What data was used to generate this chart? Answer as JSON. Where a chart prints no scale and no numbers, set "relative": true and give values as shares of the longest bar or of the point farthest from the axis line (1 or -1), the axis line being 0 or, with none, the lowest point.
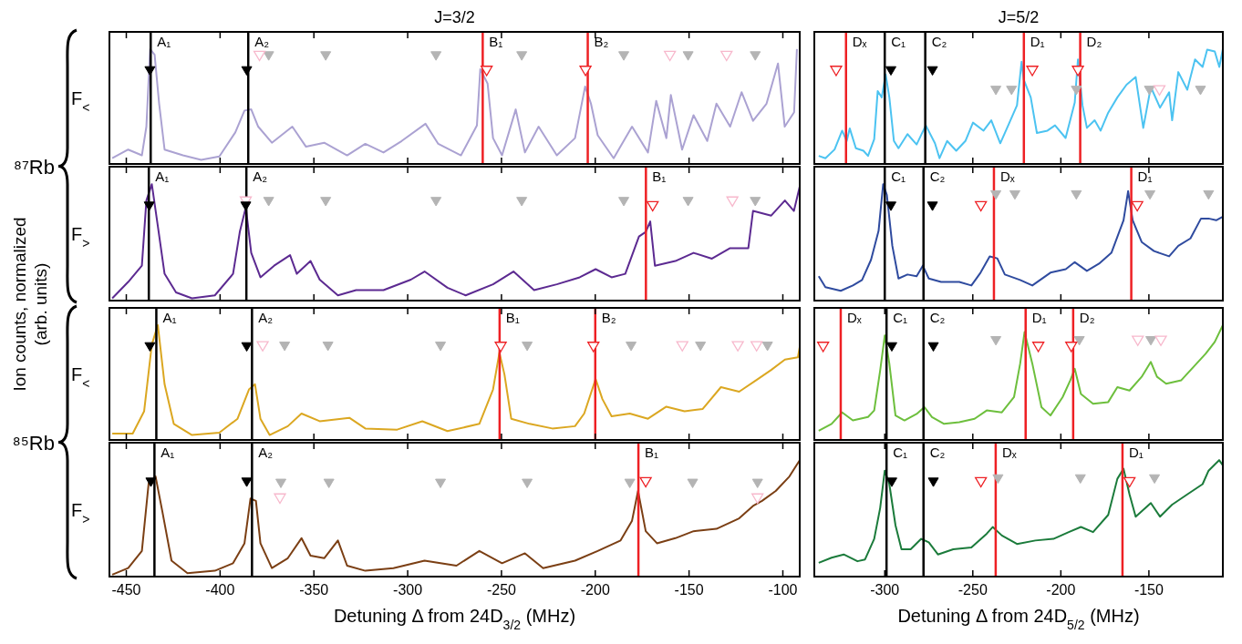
{
  "chart_data": [
    {
      "type": "line",
      "title": "J=3/2",
      "ylabel": "F$_{<}$",
      "relative": true,
      "xlim": [
        -459,
        -91
      ],
      "xticks": [
        -450,
        -400,
        -350,
        -300,
        -250,
        -200,
        -150,
        -100
      ],
      "tick_labels": false,
      "annotations": [
        "Ion counts, normalized (arb. units)",
        "⁸⁷Rb"
      ],
      "series": [
        {
          "type": "line",
          "color": "#aba2d2",
          "x": [
            -457.5,
            -449,
            -441.7,
            -439.3,
            -437.3,
            -434.9,
            -432.5,
            -429.6,
            -419.8,
            -410.1,
            -400.4,
            -391.9,
            -387,
            -383.4,
            -379.7,
            -372.4,
            -361.5,
            -354.2,
            -344.5,
            -332.3,
            -322.6,
            -312.9,
            -303.2,
            -290.5,
            -283.7,
            -271.6,
            -263.1,
            -261.3,
            -257.4,
            -254.5,
            -249.7,
            -242.4,
            -237.5,
            -230.2,
            -220.5,
            -210.8,
            -205.4,
            -202.3,
            -198.7,
            -190.2,
            -180.4,
            -171.9,
            -167.5,
            -162.1,
            -159.7,
            -153.7,
            -147.6,
            -140.3,
            -135.4,
            -128.1,
            -122,
            -115.9,
            -108.7,
            -102.6,
            -99,
            -94,
            -92.5
          ],
          "values": [
            0.05,
            0.125,
            0.075,
            0.325,
            1,
            0.95,
            0.525,
            0.125,
            0.075,
            0.035,
            0.065,
            0.275,
            0.465,
            0.475,
            0.325,
            0.185,
            0.325,
            0.15,
            0.185,
            0.075,
            0.175,
            0.1,
            0.2,
            0.35,
            0.175,
            0.075,
            0.335,
            0.825,
            0.7,
            0.225,
            0.075,
            0.475,
            0.1,
            0.325,
            0.075,
            0.225,
            0.675,
            0.525,
            0.25,
            0.05,
            0.325,
            0.1,
            0.55,
            0.225,
            0.6,
            0.125,
            0.425,
            0.2,
            0.525,
            0.325,
            0.625,
            0.375,
            0.525,
            0.875,
            0.325,
            0.45,
            1
          ]
        },
        {
          "type": "scatter",
          "color": "#b4b4b4",
          "marker": "triangle",
          "x": [
            -374.1,
            -343.7,
            -284.9,
            -239.2,
            -184.8,
            -150.5,
            -114.7
          ],
          "values": [
            0.94,
            0.94,
            0.94,
            0.94,
            0.94,
            0.94,
            0.94
          ]
        },
        {
          "type": "scatter",
          "color": "#f7b8cc",
          "marker": "triangle",
          "x": [
            -379,
            -160.2,
            -130
          ],
          "values": [
            0.94,
            0.94,
            0.94
          ]
        },
        {
          "type": "scatter",
          "color": "#000000",
          "marker": "triangle",
          "x": [
            -437.4,
            -385.8
          ],
          "values": [
            0.81,
            0.81
          ]
        },
        {
          "type": "scatter",
          "color": "#ee2024",
          "marker": "triangle",
          "x": [
            -257.9,
            -205.2
          ],
          "values": [
            0.81,
            0.81
          ]
        }
      ],
      "ref_lines": [
        {
          "axis": "x",
          "value": -437,
          "label": "A₁",
          "color": "#000000"
        },
        {
          "axis": "x",
          "value": -385,
          "label": "A₂",
          "color": "#000000"
        },
        {
          "axis": "x",
          "value": -260,
          "label": "B₁",
          "color": "#ee2024"
        },
        {
          "axis": "x",
          "value": -204,
          "label": "B₂",
          "color": "#ee2024"
        }
      ]
    },
    {
      "type": "line",
      "title": "J=5/2",
      "relative": true,
      "xlim": [
        -340,
        -108
      ],
      "xticks": [
        -300,
        -250,
        -200,
        -150
      ],
      "tick_labels": false,
      "series": [
        {
          "type": "line",
          "color": "#4cc3f1",
          "x": [
            -337.5,
            -333.7,
            -328.5,
            -324.2,
            -321.6,
            -319.9,
            -316.4,
            -312.1,
            -309.5,
            -306,
            -304,
            -301.7,
            -299.5,
            -297.4,
            -294.8,
            -292.2,
            -287.1,
            -281.9,
            -276.7,
            -271.5,
            -268.9,
            -264.6,
            -259.4,
            -254.2,
            -249.9,
            -243.9,
            -239.5,
            -234.4,
            -229.2,
            -224.9,
            -222.3,
            -221.1,
            -217.1,
            -213.6,
            -207.6,
            -203.3,
            -197.3,
            -192.1,
            -190.3,
            -187.7,
            -185.2,
            -180.8,
            -177.4,
            -173.1,
            -167.9,
            -162.7,
            -157.5,
            -153.2,
            -148.9,
            -143.7,
            -138.5,
            -136.8,
            -133.3,
            -128.2,
            -123.8,
            -119.5,
            -116.9,
            -112.6,
            -110,
            -108
          ],
          "values": [
            0.07,
            0.05,
            0.126,
            0.29,
            0.2,
            0.31,
            0.137,
            0.115,
            0.07,
            0.215,
            0.635,
            0.58,
            0.78,
            0.58,
            0.2,
            0.137,
            0.26,
            0.17,
            0.336,
            0.18,
            0.05,
            0.2,
            0.115,
            0.2,
            0.36,
            0.29,
            0.38,
            0.18,
            0.36,
            0.51,
            0.89,
            0.735,
            0.58,
            0.27,
            0.29,
            0.336,
            0.226,
            0.535,
            0.91,
            0.51,
            0.314,
            0.38,
            0.29,
            0.447,
            0.58,
            0.69,
            0.757,
            0.314,
            0.67,
            0.49,
            0.624,
            0.38,
            0.8,
            0.646,
            0.91,
            0.845,
            0.995,
            0.98,
            0.845,
            1
          ]
        },
        {
          "type": "scatter",
          "color": "#b4b4b4",
          "marker": "triangle",
          "x": [
            -236.9,
            -228,
            -191.2,
            -149.7,
            -120.7
          ],
          "values": [
            0.64,
            0.64,
            0.64,
            0.64,
            0.64
          ]
        },
        {
          "type": "scatter",
          "color": "#f7b8cc",
          "marker": "triangle",
          "x": [
            -144
          ],
          "values": [
            0.64
          ]
        },
        {
          "type": "scatter",
          "color": "#000000",
          "marker": "triangle",
          "x": [
            -296.5,
            -272.9
          ],
          "values": [
            0.81,
            0.81
          ]
        },
        {
          "type": "scatter",
          "color": "#ee2024",
          "marker": "triangle",
          "x": [
            -327.6,
            -216.2,
            -190.3
          ],
          "values": [
            0.81,
            0.81,
            0.81
          ]
        }
      ],
      "ref_lines": [
        {
          "axis": "x",
          "value": -322,
          "label": "Dₓ",
          "color": "#ee2024"
        },
        {
          "axis": "x",
          "value": -300,
          "label": "C₁",
          "color": "#000000"
        },
        {
          "axis": "x",
          "value": -277,
          "label": "C₂",
          "color": "#000000"
        },
        {
          "axis": "x",
          "value": -221,
          "label": "D₁",
          "color": "#ee2024"
        },
        {
          "axis": "x",
          "value": -189,
          "label": "D₂",
          "color": "#ee2024"
        }
      ]
    },
    {
      "type": "line",
      "ylabel": "F$_{>}$",
      "relative": true,
      "xlim": [
        -459,
        -91
      ],
      "xticks": [
        -450,
        -400,
        -350,
        -300,
        -250,
        -200,
        -150,
        -100
      ],
      "tick_labels": false,
      "series": [
        {
          "type": "line",
          "color": "#5c2a91",
          "x": [
            -457.5,
            -449,
            -441.7,
            -439.3,
            -436.4,
            -433.2,
            -429.6,
            -423.5,
            -415,
            -402.8,
            -393.1,
            -389.5,
            -386.3,
            -383.4,
            -378.5,
            -371.2,
            -362.7,
            -359.1,
            -351.8,
            -346.9,
            -337.2,
            -327.5,
            -312.9,
            -298.3,
            -291,
            -278.8,
            -269.1,
            -254.5,
            -243.6,
            -232.6,
            -220.5,
            -208.3,
            -199.8,
            -191.3,
            -184,
            -176.7,
            -173.1,
            -170.7,
            -168.2,
            -157.3,
            -147.6,
            -137.8,
            -128.1,
            -118.4,
            -115.9,
            -106.2,
            -98.9,
            -94.1,
            -91
          ],
          "values": [
            0.02,
            0.16,
            0.3,
            0.86,
            1,
            0.64,
            0.23,
            0.07,
            0.02,
            0.045,
            0.23,
            0.59,
            0.8,
            0.41,
            0.2,
            0.3,
            0.39,
            0.23,
            0.34,
            0.18,
            0.045,
            0.09,
            0.09,
            0.18,
            0.25,
            0.11,
            0.045,
            0.14,
            0.25,
            0.09,
            0.14,
            0.2,
            0.27,
            0.2,
            0.23,
            0.55,
            0.59,
            0.68,
            0.3,
            0.34,
            0.41,
            0.36,
            0.45,
            0.45,
            0.77,
            0.73,
            0.86,
            0.77,
            0.98
          ]
        },
        {
          "type": "scatter",
          "color": "#b4b4b4",
          "marker": "triangle",
          "x": [
            -374.1,
            -343.7,
            -284.9,
            -239.2,
            -184.8,
            -150.5,
            -114.7
          ],
          "values": [
            0.85,
            0.85,
            0.85,
            0.85,
            0.85,
            0.85,
            0.85
          ]
        },
        {
          "type": "scatter",
          "color": "#f7b8cc",
          "marker": "triangle",
          "x": [
            -386.3,
            -126.9
          ],
          "values": [
            0.85,
            0.85
          ]
        },
        {
          "type": "scatter",
          "color": "#000000",
          "marker": "triangle",
          "x": [
            -437.8,
            -386.3
          ],
          "values": [
            0.81,
            0.81
          ]
        },
        {
          "type": "scatter",
          "color": "#ee2024",
          "marker": "triangle",
          "x": [
            -169.4
          ],
          "values": [
            0.81
          ]
        }
      ],
      "ref_lines": [
        {
          "axis": "x",
          "value": -438,
          "label": "A₁",
          "color": "#000000"
        },
        {
          "axis": "x",
          "value": -386,
          "label": "A₂",
          "color": "#000000"
        },
        {
          "axis": "x",
          "value": -173,
          "label": "B₁",
          "color": "#ee2024"
        }
      ]
    },
    {
      "type": "line",
      "relative": true,
      "xlim": [
        -340,
        -108
      ],
      "xticks": [
        -300,
        -250,
        -200,
        -150
      ],
      "tick_labels": false,
      "series": [
        {
          "type": "line",
          "color": "#2f4b9f",
          "x": [
            -337.5,
            -333.7,
            -325,
            -318.1,
            -312.9,
            -307.8,
            -303.5,
            -300.9,
            -298.8,
            -295.7,
            -292.2,
            -287.1,
            -281.9,
            -278.4,
            -275,
            -268,
            -257.7,
            -250.8,
            -245.6,
            -240.4,
            -236.1,
            -231.8,
            -223.1,
            -216.2,
            -205.9,
            -197.2,
            -192.1,
            -185.2,
            -178.3,
            -171.3,
            -164.4,
            -161.8,
            -159.2,
            -154.1,
            -147.1,
            -138.5,
            -133.3,
            -126.4,
            -120.4,
            -116.1,
            -111.8,
            -108
          ],
          "values": [
            0.21,
            0.115,
            0.084,
            0.13,
            0.177,
            0.35,
            0.6,
            1,
            0.907,
            0.47,
            0.19,
            0.224,
            0.21,
            0.3,
            0.19,
            0.16,
            0.16,
            0.13,
            0.24,
            0.38,
            0.363,
            0.224,
            0.177,
            0.13,
            0.24,
            0.27,
            0.33,
            0.255,
            0.317,
            0.41,
            0.69,
            0.94,
            0.69,
            0.503,
            0.425,
            0.38,
            0.47,
            0.534,
            0.705,
            0.705,
            0.69,
            0.72
          ]
        },
        {
          "type": "scatter",
          "color": "#b4b4b4",
          "marker": "triangle",
          "x": [
            -236.9,
            -226.1,
            -191.2,
            -149.4,
            -116.1
          ],
          "values": [
            0.907,
            0.907,
            0.907,
            0.907,
            0.907
          ]
        },
        {
          "type": "scatter",
          "color": "#000000",
          "marker": "triangle",
          "x": [
            -296.5,
            -272.9
          ],
          "values": [
            0.81,
            0.81
          ]
        },
        {
          "type": "scatter",
          "color": "#ee2024",
          "marker": "triangle",
          "x": [
            -245.4,
            -156.6
          ],
          "values": [
            0.81,
            0.81
          ]
        }
      ],
      "ref_lines": [
        {
          "axis": "x",
          "value": -300,
          "label": "C₁",
          "color": "#000000"
        },
        {
          "axis": "x",
          "value": -278,
          "label": "C₂",
          "color": "#000000"
        },
        {
          "axis": "x",
          "value": -238,
          "label": "Dₓ",
          "color": "#ee2024"
        },
        {
          "axis": "x",
          "value": -160,
          "label": "D₁",
          "color": "#ee2024"
        }
      ]
    },
    {
      "type": "line",
      "ylabel": "F$_{<}$",
      "relative": true,
      "xlim": [
        -459,
        -91
      ],
      "xticks": [
        -450,
        -400,
        -350,
        -300,
        -250,
        -200,
        -150,
        -100
      ],
      "tick_labels": false,
      "annotations": [
        "⁸⁵Rb"
      ],
      "series": [
        {
          "type": "line",
          "color": "#dba721",
          "x": [
            -457.5,
            -446.6,
            -440.5,
            -436.4,
            -433.2,
            -429.6,
            -424.7,
            -415,
            -400.4,
            -390.7,
            -384.6,
            -381.4,
            -378.5,
            -373.6,
            -363.9,
            -356.6,
            -346.9,
            -331.1,
            -322.6,
            -305.6,
            -292.2,
            -278.8,
            -261.8,
            -254.5,
            -251.1,
            -248.4,
            -244.8,
            -235,
            -222.9,
            -210.8,
            -205.9,
            -199.8,
            -196.2,
            -191.3,
            -181.6,
            -171.9,
            -162.1,
            -152.4,
            -142.7,
            -133,
            -123.3,
            -113.3,
            -106.2,
            -98.9,
            -92,
            -91
          ],
          "values": [
            0.056,
            0.056,
            0.25,
            0.83,
            1,
            0.485,
            0.14,
            0.043,
            0.064,
            0.185,
            0.44,
            0.485,
            0.185,
            0.043,
            0.12,
            0.23,
            0.163,
            0.193,
            0.1,
            0.09,
            0.163,
            0.077,
            0.14,
            0.44,
            0.76,
            0.57,
            0.185,
            0.14,
            0.1,
            0.12,
            0.23,
            0.53,
            0.356,
            0.206,
            0.23,
            0.185,
            0.29,
            0.25,
            0.27,
            0.46,
            0.42,
            0.53,
            0.61,
            0.7,
            0.72,
            0.81
          ]
        },
        {
          "type": "scatter",
          "color": "#b4b4b4",
          "marker": "triangle",
          "x": [
            -365.6,
            -342.5,
            -282.5,
            -236.3,
            -180.9,
            -143.9,
            -108.2
          ],
          "values": [
            0.815,
            0.815,
            0.815,
            0.815,
            0.815,
            0.815,
            0.815
          ]
        },
        {
          "type": "scatter",
          "color": "#f7b8cc",
          "marker": "triangle",
          "x": [
            -377.3,
            -153.6,
            -124,
            -114
          ],
          "values": [
            0.815,
            0.815,
            0.815,
            0.815
          ]
        },
        {
          "type": "scatter",
          "color": "#000000",
          "marker": "triangle",
          "x": [
            -437.4,
            -385.8
          ],
          "values": [
            0.81,
            0.81
          ]
        },
        {
          "type": "scatter",
          "color": "#ee2024",
          "marker": "triangle",
          "x": [
            -250.4,
            -201
          ],
          "values": [
            0.81,
            0.81
          ]
        }
      ],
      "ref_lines": [
        {
          "axis": "x",
          "value": -434,
          "label": "A₁",
          "color": "#000000"
        },
        {
          "axis": "x",
          "value": -383,
          "label": "A₂",
          "color": "#000000"
        },
        {
          "axis": "x",
          "value": -251,
          "label": "B₁",
          "color": "#ee2024"
        },
        {
          "axis": "x",
          "value": -200,
          "label": "B₂",
          "color": "#ee2024"
        }
      ]
    },
    {
      "type": "line",
      "relative": true,
      "xlim": [
        -340,
        -108
      ],
      "xticks": [
        -300,
        -250,
        -200,
        -150
      ],
      "tick_labels": false,
      "series": [
        {
          "type": "line",
          "color": "#6dbf3d",
          "x": [
            -337.5,
            -330.2,
            -324.2,
            -318.1,
            -309.5,
            -306,
            -302.6,
            -300,
            -297.4,
            -293.9,
            -288.8,
            -281.9,
            -277.5,
            -273.2,
            -266.3,
            -257.7,
            -249,
            -242.1,
            -233.5,
            -226.6,
            -223.1,
            -220.6,
            -216.2,
            -211,
            -205.9,
            -199,
            -194.6,
            -192.1,
            -188.6,
            -181.7,
            -173.1,
            -167.9,
            -161,
            -154.1,
            -148.9,
            -145.4,
            -140.2,
            -131.6,
            -124.7,
            -117.8,
            -112.6,
            -108
          ],
          "values": [
            0.08,
            0.14,
            0.24,
            0.17,
            0.2,
            0.257,
            0.606,
            0.91,
            0.665,
            0.213,
            0.17,
            0.227,
            0.286,
            0.2,
            0.14,
            0.155,
            0.184,
            0.257,
            0.24,
            0.373,
            0.665,
            0.94,
            0.665,
            0.286,
            0.213,
            0.373,
            0.52,
            0.62,
            0.4,
            0.315,
            0.33,
            0.46,
            0.43,
            0.55,
            0.68,
            0.55,
            0.49,
            0.52,
            0.636,
            0.75,
            0.854,
            1
          ]
        },
        {
          "type": "scatter",
          "color": "#b4b4b4",
          "marker": "triangle",
          "x": [
            -236.9,
            -189.5,
            -148.9
          ],
          "values": [
            0.863,
            0.863,
            0.863
          ]
        },
        {
          "type": "scatter",
          "color": "#f7b8cc",
          "marker": "triangle",
          "x": [
            -156.3,
            -143.2
          ],
          "values": [
            0.863,
            0.863
          ]
        },
        {
          "type": "scatter",
          "color": "#000000",
          "marker": "triangle",
          "x": [
            -296,
            -272.4
          ],
          "values": [
            0.81,
            0.81
          ]
        },
        {
          "type": "scatter",
          "color": "#ee2024",
          "marker": "triangle",
          "x": [
            -335,
            -212.8,
            -194.1
          ],
          "values": [
            0.81,
            0.81,
            0.81
          ]
        }
      ],
      "ref_lines": [
        {
          "axis": "x",
          "value": -325,
          "label": "Dₓ",
          "color": "#ee2024"
        },
        {
          "axis": "x",
          "value": -299,
          "label": "C₁",
          "color": "#000000"
        },
        {
          "axis": "x",
          "value": -278,
          "label": "C₂",
          "color": "#000000"
        },
        {
          "axis": "x",
          "value": -220,
          "label": "D₁",
          "color": "#ee2024"
        },
        {
          "axis": "x",
          "value": -193,
          "label": "D₂",
          "color": "#ee2024"
        }
      ]
    },
    {
      "type": "line",
      "ylabel": "F$_{>}$",
      "xlabel": "Detuning Δ from 24D$_{3/2}$ (MHz)",
      "relative": true,
      "xlim": [
        -459,
        -91
      ],
      "xticks": [
        -450,
        -400,
        -350,
        -300,
        -250,
        -200,
        -150,
        -100
      ],
      "tick_labels": "x",
      "series": [
        {
          "type": "line",
          "color": "#7b3f14",
          "x": [
            -457.5,
            -449,
            -441.7,
            -438.1,
            -434.4,
            -430.8,
            -425.9,
            -417.4,
            -402.8,
            -393.1,
            -387,
            -383.8,
            -380.9,
            -378.5,
            -372.4,
            -363.9,
            -356.6,
            -351.8,
            -344.5,
            -337.2,
            -332.3,
            -322.6,
            -307.6,
            -291,
            -274,
            -261.8,
            -249.7,
            -237.5,
            -227.8,
            -210.8,
            -198.7,
            -186.5,
            -180.4,
            -177.2,
            -173.1,
            -167.1,
            -157.3,
            -147.6,
            -135.4,
            -123.3,
            -115.9,
            -111.1,
            -103.8,
            -96.5,
            -91
          ],
          "values": [
            0.017,
            0.073,
            0.22,
            0.8,
            0.86,
            0.56,
            0.137,
            0.03,
            0.05,
            0.115,
            0.286,
            0.67,
            0.65,
            0.286,
            0.073,
            0.158,
            0.33,
            0.18,
            0.158,
            0.31,
            0.094,
            0.05,
            0.073,
            0.137,
            0.094,
            0.22,
            0.115,
            0.2,
            0.073,
            0.137,
            0.22,
            0.31,
            0.48,
            0.735,
            0.39,
            0.286,
            0.33,
            0.39,
            0.41,
            0.5,
            0.607,
            0.65,
            0.735,
            0.86,
            1
          ]
        },
        {
          "type": "scatter",
          "color": "#b4b4b4",
          "marker": "triangle",
          "x": [
            -367.6,
            -342,
            -282.5,
            -236.3,
            -181.6,
            -148.1,
            -113.5
          ],
          "values": [
            0.8,
            0.8,
            0.8,
            0.8,
            0.8,
            0.8,
            0.8
          ]
        },
        {
          "type": "scatter",
          "color": "#f7b8cc",
          "marker": "triangle",
          "x": [
            -368.1,
            -113.5
          ],
          "values": [
            0.67,
            0.67
          ]
        },
        {
          "type": "scatter",
          "color": "#000000",
          "marker": "triangle",
          "x": [
            -436.9,
            -385.8
          ],
          "values": [
            0.81,
            0.81
          ]
        },
        {
          "type": "scatter",
          "color": "#ee2024",
          "marker": "triangle",
          "x": [
            -173.1
          ],
          "values": [
            0.81
          ]
        }
      ],
      "ref_lines": [
        {
          "axis": "x",
          "value": -435,
          "label": "A₁",
          "color": "#000000"
        },
        {
          "axis": "x",
          "value": -383,
          "label": "A₂",
          "color": "#000000"
        },
        {
          "axis": "x",
          "value": -177,
          "label": "B₁",
          "color": "#ee2024"
        }
      ]
    },
    {
      "type": "line",
      "xlabel": "Detuning Δ from 24D$_{5/2}$ (MHz)",
      "relative": true,
      "xlim": [
        -340,
        -108
      ],
      "xticks": [
        -300,
        -250,
        -200,
        -150
      ],
      "tick_labels": "x",
      "series": [
        {
          "type": "line",
          "color": "#1b7b3b",
          "x": [
            -337.5,
            -330.2,
            -323.3,
            -315.5,
            -311.2,
            -306,
            -302.6,
            -300,
            -297.4,
            -293.9,
            -290.5,
            -285.3,
            -279.3,
            -275,
            -269.8,
            -261.1,
            -250.8,
            -242.1,
            -238.7,
            -233.5,
            -224.9,
            -214.5,
            -204.2,
            -195.5,
            -188.6,
            -181.7,
            -173.1,
            -167.9,
            -164.4,
            -161,
            -157.5,
            -148.9,
            -143.7,
            -136.8,
            -128.2,
            -119.5,
            -116.1,
            -110.1,
            -108
          ],
          "values": [
            0.118,
            0.162,
            0.19,
            0.132,
            0.147,
            0.324,
            0.59,
            0.91,
            0.794,
            0.44,
            0.235,
            0.235,
            0.324,
            0.294,
            0.19,
            0.235,
            0.25,
            0.368,
            0.426,
            0.353,
            0.28,
            0.31,
            0.324,
            0.382,
            0.426,
            0.382,
            0.53,
            0.84,
            0.926,
            0.706,
            0.515,
            0.632,
            0.515,
            0.618,
            0.706,
            0.794,
            0.91,
            1,
            0.956
          ]
        },
        {
          "type": "scatter",
          "color": "#b4b4b4",
          "marker": "triangle",
          "x": [
            -235.7,
            -188.9,
            -146.8
          ],
          "values": [
            0.838,
            0.838,
            0.838
          ]
        },
        {
          "type": "scatter",
          "color": "#000000",
          "marker": "triangle",
          "x": [
            -296,
            -272.4
          ],
          "values": [
            0.81,
            0.81
          ]
        },
        {
          "type": "scatter",
          "color": "#ee2024",
          "marker": "triangle",
          "x": [
            -245.4,
            -161
          ],
          "values": [
            0.81,
            0.81
          ]
        }
      ],
      "ref_lines": [
        {
          "axis": "x",
          "value": -299,
          "label": "C₁",
          "color": "#000000"
        },
        {
          "axis": "x",
          "value": -278,
          "label": "C₂",
          "color": "#000000"
        },
        {
          "axis": "x",
          "value": -237,
          "label": "Dₓ",
          "color": "#ee2024"
        },
        {
          "axis": "x",
          "value": -165,
          "label": "D₁",
          "color": "#ee2024"
        }
      ]
    }
  ]
}
